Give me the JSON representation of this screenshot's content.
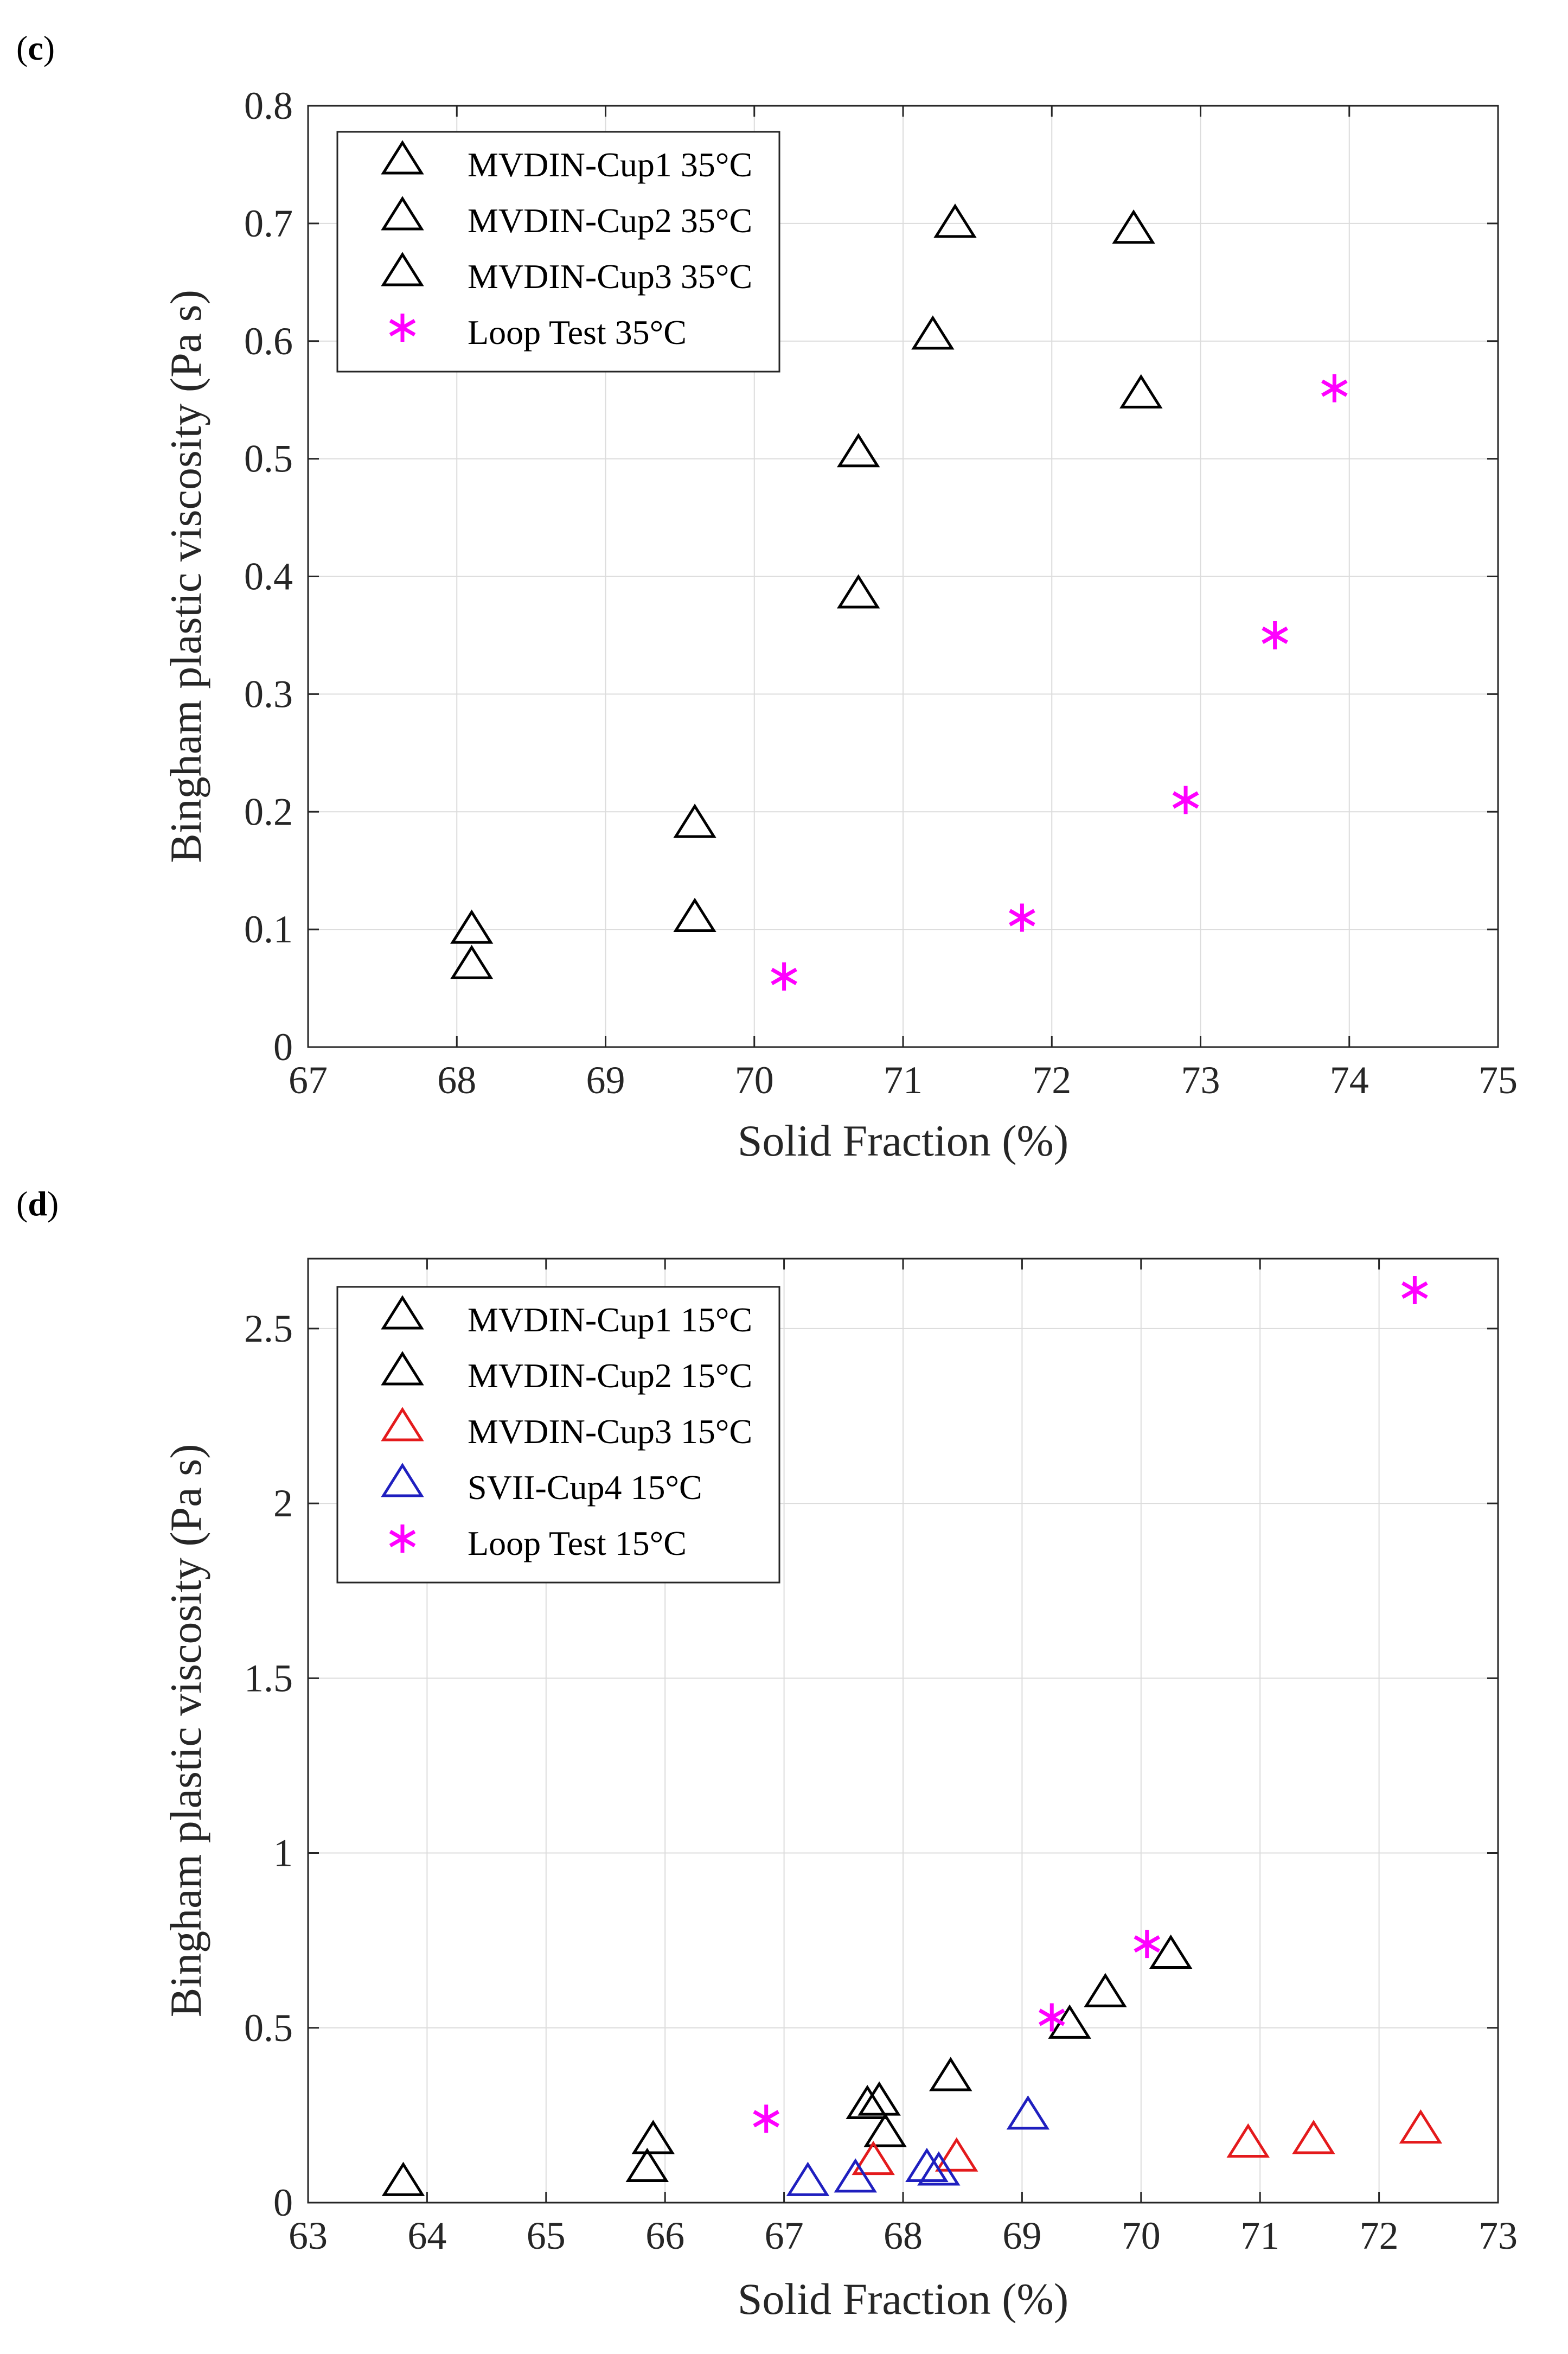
{
  "chart_data": [
    {
      "type": "scatter",
      "panel_label": "c",
      "xlabel": "Solid Fraction (%)",
      "ylabel": "Bingham plastic viscosity (Pa s)",
      "xlim": [
        67,
        75
      ],
      "ylim": [
        0,
        0.8
      ],
      "xticks": [
        "67",
        "68",
        "69",
        "70",
        "71",
        "72",
        "73",
        "74",
        "75"
      ],
      "yticks": [
        "0",
        "0.1",
        "0.2",
        "0.3",
        "0.4",
        "0.5",
        "0.6",
        "0.7",
        "0.8"
      ],
      "grid": true,
      "legend_position": "top-left",
      "series": [
        {
          "name": "MVDIN-Cup1 35°C",
          "marker": "triangle",
          "color": "#000000",
          "x": [
            68.1,
            69.6,
            70.7
          ],
          "y": [
            0.1,
            0.19,
            0.385
          ]
        },
        {
          "name": "MVDIN-Cup2 35°C",
          "marker": "triangle",
          "color": "#000000",
          "x": [
            68.1,
            69.6,
            70.7
          ],
          "y": [
            0.07,
            0.11,
            0.505
          ]
        },
        {
          "name": "MVDIN-Cup3 35°C",
          "marker": "triangle",
          "color": "#000000",
          "x": [
            71.2,
            71.35,
            72.55,
            72.6
          ],
          "y": [
            0.605,
            0.7,
            0.695,
            0.555
          ]
        },
        {
          "name": "Loop Test 35°C",
          "marker": "star",
          "color": "#ff00ff",
          "x": [
            70.2,
            71.8,
            72.9,
            73.5,
            73.9
          ],
          "y": [
            0.06,
            0.11,
            0.21,
            0.35,
            0.56
          ]
        }
      ]
    },
    {
      "type": "scatter",
      "panel_label": "d",
      "xlabel": "Solid Fraction (%)",
      "ylabel": "Bingham plastic viscosity (Pa s)",
      "xlim": [
        63,
        73
      ],
      "ylim": [
        0,
        2.7
      ],
      "xticks": [
        "63",
        "64",
        "65",
        "66",
        "67",
        "68",
        "69",
        "70",
        "71",
        "72",
        "73"
      ],
      "yticks": [
        "0",
        "0.5",
        "1",
        "1.5",
        "2",
        "2.5"
      ],
      "ytick_values": [
        0,
        0.5,
        1,
        1.5,
        2,
        2.5
      ],
      "grid": true,
      "legend_position": "top-left",
      "series": [
        {
          "name": "MVDIN-Cup1 15°C",
          "marker": "triangle",
          "color": "#000000",
          "x": [
            63.8,
            65.9,
            67.7,
            68.4,
            69.4,
            70.25
          ],
          "y": [
            0.06,
            0.18,
            0.28,
            0.36,
            0.51,
            0.71
          ]
        },
        {
          "name": "MVDIN-Cup2 15°C",
          "marker": "triangle",
          "color": "#000000",
          "x": [
            65.85,
            67.8,
            67.85,
            69.7
          ],
          "y": [
            0.1,
            0.29,
            0.2,
            0.6
          ]
        },
        {
          "name": "MVDIN-Cup3 15°C",
          "marker": "triangle",
          "color": "#e41a1c",
          "x": [
            67.75,
            68.45,
            70.9,
            71.45,
            72.35
          ],
          "y": [
            0.12,
            0.13,
            0.17,
            0.18,
            0.21
          ]
        },
        {
          "name": "SVII-Cup4 15°C",
          "marker": "triangle",
          "color": "#1f1fbf",
          "x": [
            67.2,
            67.6,
            68.2,
            68.3,
            69.05
          ],
          "y": [
            0.06,
            0.07,
            0.1,
            0.09,
            0.25
          ]
        },
        {
          "name": "Loop Test 15°C",
          "marker": "star",
          "color": "#ff00ff",
          "x": [
            66.85,
            69.25,
            70.05,
            72.3
          ],
          "y": [
            0.24,
            0.53,
            0.74,
            2.61
          ]
        }
      ]
    }
  ]
}
